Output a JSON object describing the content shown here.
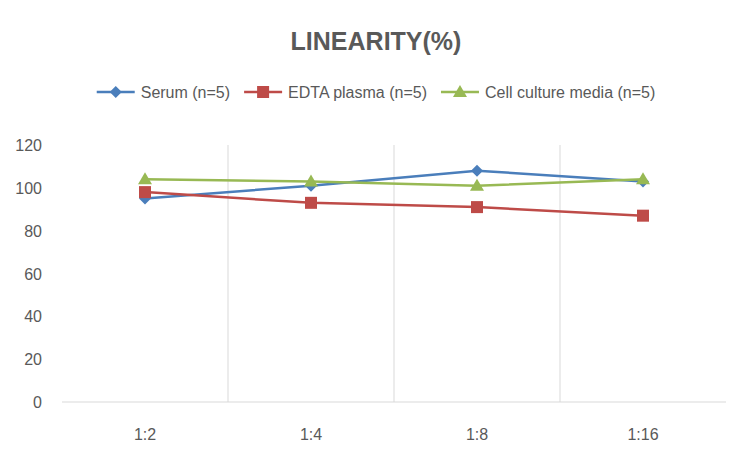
{
  "chart_data": {
    "type": "line",
    "title": "LINEARITY(%)",
    "categories": [
      "1:2",
      "1:4",
      "1:8",
      "1:16"
    ],
    "series": [
      {
        "name": "Serum (n=5)",
        "color": "#4a7ebb",
        "marker": "diamond",
        "values": [
          95,
          101,
          108,
          103
        ]
      },
      {
        "name": "EDTA plasma (n=5)",
        "color": "#be4b48",
        "marker": "square",
        "values": [
          98,
          93,
          91,
          87
        ]
      },
      {
        "name": "Cell culture media (n=5)",
        "color": "#98b954",
        "marker": "triangle",
        "values": [
          104,
          103,
          101,
          104
        ]
      }
    ],
    "ylim": [
      0,
      120
    ],
    "yticks": [
      0,
      20,
      40,
      60,
      80,
      100,
      120
    ],
    "grid": true,
    "legend": "top"
  }
}
